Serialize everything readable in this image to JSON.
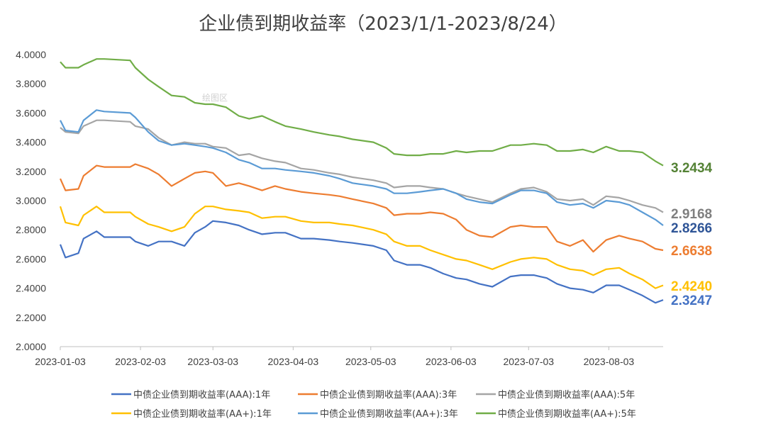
{
  "chart_data": {
    "type": "line",
    "title": "企业债到期收益率（2023/1/1-2023/8/24）",
    "ylim": [
      2.0,
      4.0
    ],
    "yticks": [
      "2.0000",
      "2.2000",
      "2.4000",
      "2.6000",
      "2.8000",
      "3.0000",
      "3.2000",
      "3.4000",
      "3.6000",
      "3.8000",
      "4.0000"
    ],
    "xticks": [
      "2023-01-03",
      "2023-02-03",
      "2023-03-03",
      "2023-04-03",
      "2023-05-03",
      "2023-06-03",
      "2023-07-03",
      "2023-08-03"
    ],
    "x": [
      "2023-01-03",
      "2023-01-05",
      "2023-01-10",
      "2023-01-12",
      "2023-01-17",
      "2023-01-20",
      "2023-01-30",
      "2023-02-01",
      "2023-02-06",
      "2023-02-10",
      "2023-02-15",
      "2023-02-20",
      "2023-02-24",
      "2023-02-28",
      "2023-03-03",
      "2023-03-08",
      "2023-03-13",
      "2023-03-17",
      "2023-03-22",
      "2023-03-27",
      "2023-03-31",
      "2023-04-06",
      "2023-04-11",
      "2023-04-17",
      "2023-04-21",
      "2023-04-26",
      "2023-05-04",
      "2023-05-09",
      "2023-05-12",
      "2023-05-17",
      "2023-05-22",
      "2023-05-26",
      "2023-05-31",
      "2023-06-05",
      "2023-06-09",
      "2023-06-14",
      "2023-06-19",
      "2023-06-26",
      "2023-06-30",
      "2023-07-05",
      "2023-07-10",
      "2023-07-14",
      "2023-07-19",
      "2023-07-24",
      "2023-07-28",
      "2023-08-02",
      "2023-08-07",
      "2023-08-11",
      "2023-08-16",
      "2023-08-21",
      "2023-08-24"
    ],
    "series": [
      {
        "name": "中债企业债到期收益率(AAA):1年",
        "color": "#4472C4",
        "values": [
          2.7,
          2.61,
          2.64,
          2.74,
          2.79,
          2.75,
          2.75,
          2.72,
          2.69,
          2.72,
          2.72,
          2.69,
          2.78,
          2.82,
          2.86,
          2.85,
          2.83,
          2.8,
          2.77,
          2.78,
          2.78,
          2.74,
          2.74,
          2.73,
          2.72,
          2.71,
          2.69,
          2.66,
          2.59,
          2.56,
          2.56,
          2.54,
          2.5,
          2.47,
          2.46,
          2.43,
          2.41,
          2.48,
          2.49,
          2.49,
          2.47,
          2.43,
          2.4,
          2.39,
          2.37,
          2.42,
          2.42,
          2.39,
          2.35,
          2.3,
          2.32
        ]
      },
      {
        "name": "中债企业债到期收益率(AAA):3年",
        "color": "#ED7D31",
        "values": [
          3.15,
          3.07,
          3.08,
          3.17,
          3.24,
          3.23,
          3.23,
          3.25,
          3.22,
          3.18,
          3.1,
          3.15,
          3.19,
          3.2,
          3.19,
          3.1,
          3.12,
          3.1,
          3.07,
          3.1,
          3.08,
          3.06,
          3.05,
          3.04,
          3.03,
          3.01,
          2.98,
          2.95,
          2.9,
          2.91,
          2.91,
          2.92,
          2.91,
          2.87,
          2.8,
          2.76,
          2.75,
          2.82,
          2.83,
          2.82,
          2.82,
          2.72,
          2.69,
          2.73,
          2.65,
          2.73,
          2.76,
          2.74,
          2.72,
          2.67,
          2.66
        ]
      },
      {
        "name": "中债企业债到期收益率(AAA):5年",
        "color": "#A5A5A5",
        "values": [
          3.5,
          3.47,
          3.46,
          3.51,
          3.55,
          3.55,
          3.54,
          3.51,
          3.49,
          3.43,
          3.38,
          3.4,
          3.39,
          3.39,
          3.37,
          3.36,
          3.31,
          3.32,
          3.29,
          3.27,
          3.26,
          3.22,
          3.21,
          3.19,
          3.18,
          3.16,
          3.14,
          3.12,
          3.09,
          3.1,
          3.1,
          3.09,
          3.08,
          3.05,
          3.03,
          3.01,
          2.99,
          3.05,
          3.08,
          3.09,
          3.06,
          3.01,
          3.0,
          3.01,
          2.97,
          3.03,
          3.02,
          3.0,
          2.97,
          2.95,
          2.92
        ]
      },
      {
        "name": "中债企业债到期收益率(AA+):1年",
        "color": "#FFC000",
        "values": [
          2.96,
          2.85,
          2.83,
          2.9,
          2.96,
          2.92,
          2.92,
          2.89,
          2.84,
          2.82,
          2.79,
          2.82,
          2.91,
          2.96,
          2.96,
          2.94,
          2.93,
          2.92,
          2.88,
          2.89,
          2.89,
          2.86,
          2.85,
          2.85,
          2.84,
          2.83,
          2.8,
          2.77,
          2.72,
          2.69,
          2.69,
          2.66,
          2.63,
          2.6,
          2.59,
          2.56,
          2.53,
          2.58,
          2.6,
          2.61,
          2.6,
          2.56,
          2.53,
          2.52,
          2.49,
          2.53,
          2.54,
          2.5,
          2.46,
          2.4,
          2.42
        ]
      },
      {
        "name": "中债企业债到期收益率(AA+):3年",
        "color": "#5B9BD5",
        "values": [
          3.55,
          3.48,
          3.47,
          3.55,
          3.62,
          3.61,
          3.6,
          3.57,
          3.47,
          3.41,
          3.38,
          3.39,
          3.38,
          3.37,
          3.36,
          3.33,
          3.28,
          3.26,
          3.22,
          3.22,
          3.21,
          3.2,
          3.19,
          3.17,
          3.15,
          3.12,
          3.1,
          3.08,
          3.05,
          3.05,
          3.06,
          3.07,
          3.08,
          3.05,
          3.01,
          2.99,
          2.98,
          3.04,
          3.07,
          3.07,
          3.05,
          2.99,
          2.97,
          2.98,
          2.95,
          3.0,
          2.99,
          2.97,
          2.92,
          2.87,
          2.83
        ]
      },
      {
        "name": "中债企业债到期收益率(AA+):5年",
        "color": "#70AD47",
        "values": [
          3.95,
          3.91,
          3.91,
          3.93,
          3.97,
          3.97,
          3.96,
          3.91,
          3.83,
          3.78,
          3.72,
          3.71,
          3.67,
          3.66,
          3.66,
          3.64,
          3.58,
          3.56,
          3.58,
          3.54,
          3.51,
          3.49,
          3.47,
          3.45,
          3.44,
          3.42,
          3.4,
          3.36,
          3.32,
          3.31,
          3.31,
          3.32,
          3.32,
          3.34,
          3.33,
          3.34,
          3.34,
          3.38,
          3.38,
          3.39,
          3.38,
          3.34,
          3.34,
          3.35,
          3.33,
          3.37,
          3.34,
          3.34,
          3.33,
          3.27,
          3.24
        ]
      }
    ],
    "end_labels": [
      "2.3247",
      "2.6638",
      "2.9168",
      "2.4240",
      "2.8266",
      "3.2434"
    ],
    "watermark": "绘图区",
    "legend_position": "bottom",
    "grid": false
  }
}
